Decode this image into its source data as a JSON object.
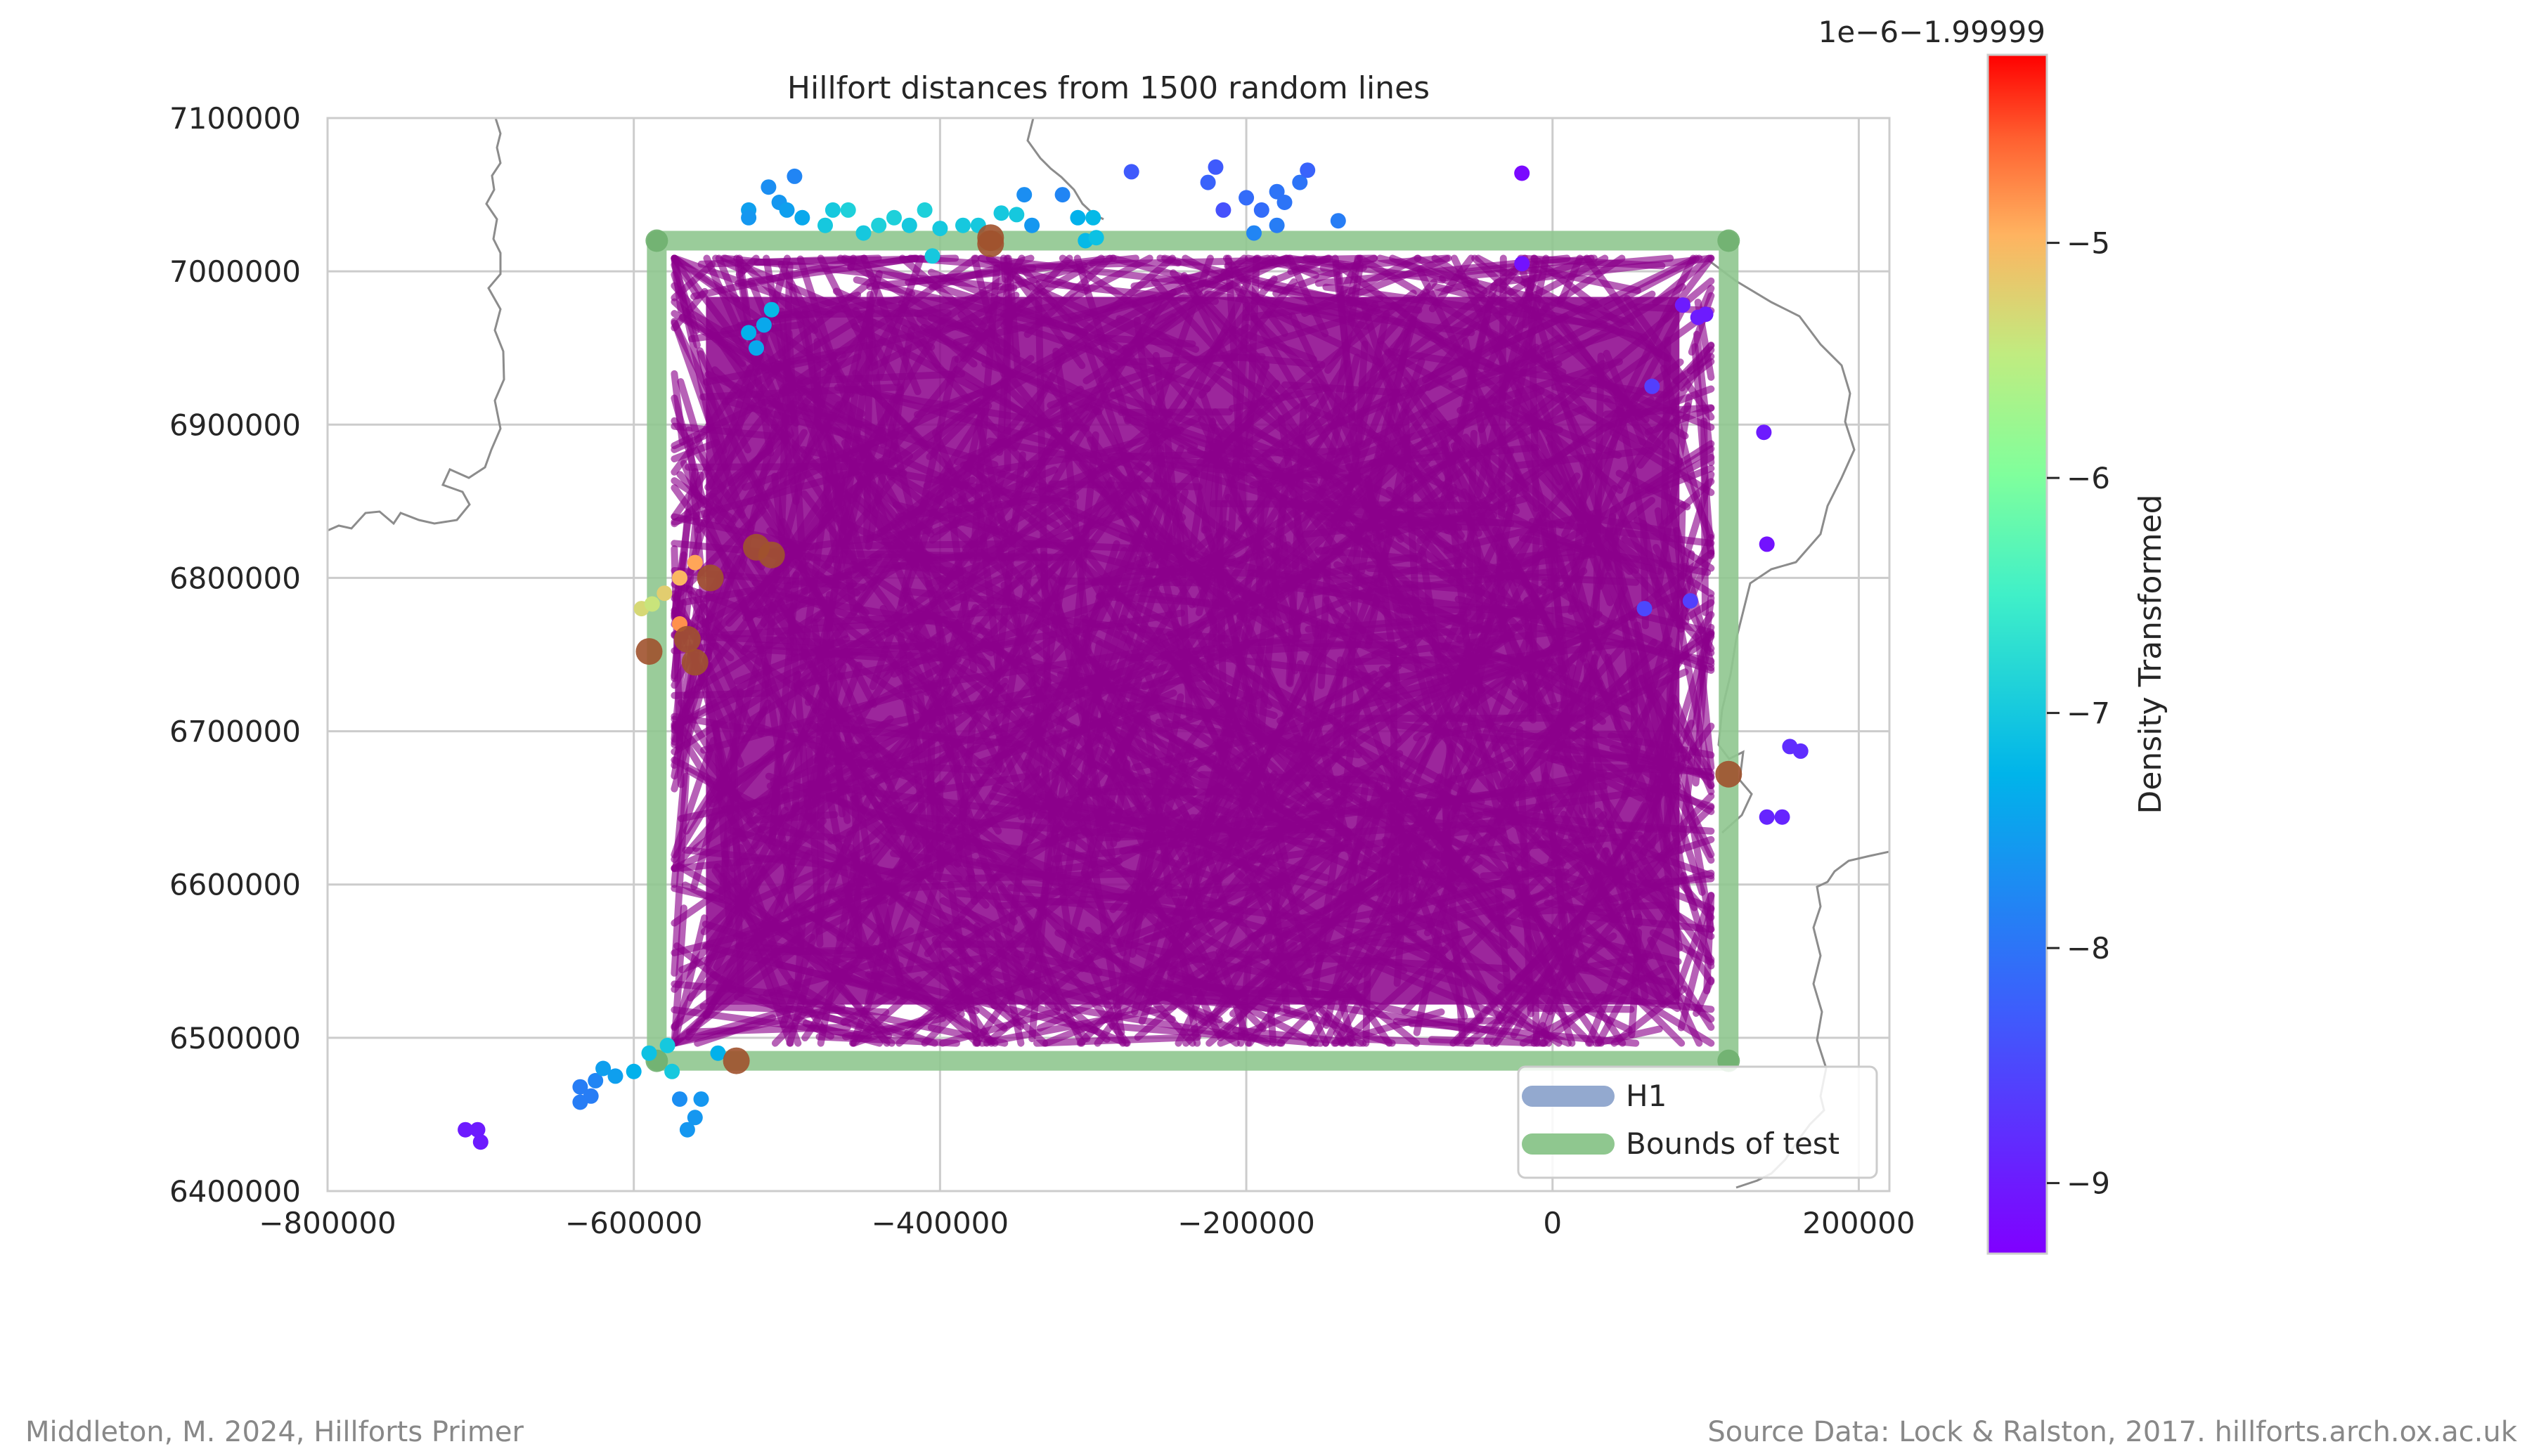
{
  "chart_data": {
    "type": "scatter",
    "title": "Hillfort distances from 1500 random lines",
    "xlabel": "",
    "ylabel": "",
    "xlim": [
      -800000,
      220000
    ],
    "ylim": [
      6400000,
      7100000
    ],
    "x_ticks": [
      -800000,
      -600000,
      -400000,
      -200000,
      0,
      200000
    ],
    "x_tick_labels": [
      "−800000",
      "−600000",
      "−400000",
      "−200000",
      "0",
      "200000"
    ],
    "y_ticks": [
      6400000,
      6500000,
      6600000,
      6700000,
      6800000,
      6900000,
      7000000,
      7100000
    ],
    "y_tick_labels": [
      "6400000",
      "6500000",
      "6600000",
      "6700000",
      "6800000",
      "6900000",
      "7000000",
      "7100000"
    ],
    "grid": true,
    "legend": {
      "placement": "lower-right",
      "entries": [
        {
          "label": "H1",
          "color": "#93a9cf"
        },
        {
          "label": "Bounds of test",
          "color": "#8fc78f"
        }
      ]
    },
    "bounds_of_test": {
      "x": [
        -585000,
        115000
      ],
      "y": [
        6485000,
        7020000
      ],
      "color": "#8fc78f"
    },
    "random_lines": {
      "count": 1500,
      "color": "#8b008b"
    },
    "colorbar": {
      "label": "Density Transformed",
      "offset_text": "1e−6−1.99999",
      "ticks": [
        -9,
        -8,
        -7,
        -6,
        -5
      ],
      "tick_labels": [
        "−9",
        "−8",
        "−7",
        "−6",
        "−5"
      ],
      "range": [
        -9.3,
        -4.2
      ],
      "colormap": "rainbow"
    },
    "points": [
      {
        "x": -710000,
        "y": 6440000,
        "d": -9.0
      },
      {
        "x": -702000,
        "y": 6440000,
        "d": -9.0
      },
      {
        "x": -700000,
        "y": 6432000,
        "d": -9.0
      },
      {
        "x": -635000,
        "y": 6468000,
        "d": -7.9
      },
      {
        "x": -635000,
        "y": 6458000,
        "d": -7.9
      },
      {
        "x": -628000,
        "y": 6462000,
        "d": -7.9
      },
      {
        "x": -625000,
        "y": 6472000,
        "d": -7.8
      },
      {
        "x": -620000,
        "y": 6480000,
        "d": -7.5
      },
      {
        "x": -612000,
        "y": 6475000,
        "d": -7.5
      },
      {
        "x": -600000,
        "y": 6478000,
        "d": -7.3
      },
      {
        "x": -590000,
        "y": 6490000,
        "d": -7.1
      },
      {
        "x": -578000,
        "y": 6495000,
        "d": -7.0
      },
      {
        "x": -575000,
        "y": 6478000,
        "d": -7.0
      },
      {
        "x": -570000,
        "y": 6460000,
        "d": -7.7
      },
      {
        "x": -560000,
        "y": 6448000,
        "d": -7.6
      },
      {
        "x": -556000,
        "y": 6460000,
        "d": -7.6
      },
      {
        "x": -565000,
        "y": 6440000,
        "d": -7.6
      },
      {
        "x": -545000,
        "y": 6490000,
        "d": -7.3
      },
      {
        "x": -533000,
        "y": 6485000,
        "d": -4.5
      },
      {
        "x": -590000,
        "y": 6752000,
        "d": -4.5
      },
      {
        "x": -595000,
        "y": 6780000,
        "d": -5.3
      },
      {
        "x": -588000,
        "y": 6783000,
        "d": -5.4
      },
      {
        "x": -580000,
        "y": 6790000,
        "d": -5.2
      },
      {
        "x": -570000,
        "y": 6770000,
        "d": -4.8
      },
      {
        "x": -565000,
        "y": 6760000,
        "d": -4.6
      },
      {
        "x": -560000,
        "y": 6745000,
        "d": -4.6
      },
      {
        "x": -570000,
        "y": 6800000,
        "d": -5.0
      },
      {
        "x": -560000,
        "y": 6810000,
        "d": -4.9
      },
      {
        "x": -550000,
        "y": 6800000,
        "d": -4.7
      },
      {
        "x": -520000,
        "y": 6820000,
        "d": -4.6
      },
      {
        "x": -510000,
        "y": 6815000,
        "d": -4.5
      },
      {
        "x": -515000,
        "y": 6965000,
        "d": -7.4
      },
      {
        "x": -520000,
        "y": 6950000,
        "d": -7.4
      },
      {
        "x": -525000,
        "y": 6960000,
        "d": -7.3
      },
      {
        "x": -510000,
        "y": 6975000,
        "d": -7.2
      },
      {
        "x": -525000,
        "y": 7040000,
        "d": -7.5
      },
      {
        "x": -525000,
        "y": 7035000,
        "d": -7.6
      },
      {
        "x": -512000,
        "y": 7055000,
        "d": -7.7
      },
      {
        "x": -505000,
        "y": 7045000,
        "d": -7.6
      },
      {
        "x": -495000,
        "y": 7062000,
        "d": -7.8
      },
      {
        "x": -490000,
        "y": 7035000,
        "d": -7.4
      },
      {
        "x": -500000,
        "y": 7040000,
        "d": -7.5
      },
      {
        "x": -475000,
        "y": 7030000,
        "d": -7.0
      },
      {
        "x": -470000,
        "y": 7040000,
        "d": -7.0
      },
      {
        "x": -460000,
        "y": 7040000,
        "d": -6.9
      },
      {
        "x": -450000,
        "y": 7025000,
        "d": -7.0
      },
      {
        "x": -440000,
        "y": 7030000,
        "d": -6.9
      },
      {
        "x": -430000,
        "y": 7035000,
        "d": -6.9
      },
      {
        "x": -420000,
        "y": 7030000,
        "d": -7.0
      },
      {
        "x": -410000,
        "y": 7040000,
        "d": -6.9
      },
      {
        "x": -400000,
        "y": 7028000,
        "d": -7.0
      },
      {
        "x": -405000,
        "y": 7010000,
        "d": -7.0
      },
      {
        "x": -385000,
        "y": 7030000,
        "d": -7.0
      },
      {
        "x": -375000,
        "y": 7030000,
        "d": -7.0
      },
      {
        "x": -360000,
        "y": 7038000,
        "d": -7.0
      },
      {
        "x": -350000,
        "y": 7037000,
        "d": -7.0
      },
      {
        "x": -340000,
        "y": 7030000,
        "d": -7.6
      },
      {
        "x": -345000,
        "y": 7050000,
        "d": -7.7
      },
      {
        "x": -320000,
        "y": 7050000,
        "d": -7.8
      },
      {
        "x": -310000,
        "y": 7035000,
        "d": -7.3
      },
      {
        "x": -300000,
        "y": 7035000,
        "d": -7.2
      },
      {
        "x": -305000,
        "y": 7020000,
        "d": -7.2
      },
      {
        "x": -298000,
        "y": 7022000,
        "d": -7.1
      },
      {
        "x": -367000,
        "y": 7022000,
        "d": -4.5
      },
      {
        "x": -367000,
        "y": 7018000,
        "d": -4.6
      },
      {
        "x": -275000,
        "y": 7065000,
        "d": -8.3
      },
      {
        "x": -220000,
        "y": 7068000,
        "d": -8.3
      },
      {
        "x": -225000,
        "y": 7058000,
        "d": -8.2
      },
      {
        "x": -215000,
        "y": 7040000,
        "d": -8.4
      },
      {
        "x": -200000,
        "y": 7048000,
        "d": -8.1
      },
      {
        "x": -190000,
        "y": 7040000,
        "d": -8.1
      },
      {
        "x": -180000,
        "y": 7052000,
        "d": -8.0
      },
      {
        "x": -175000,
        "y": 7045000,
        "d": -8.0
      },
      {
        "x": -165000,
        "y": 7058000,
        "d": -8.0
      },
      {
        "x": -160000,
        "y": 7066000,
        "d": -8.2
      },
      {
        "x": -180000,
        "y": 7030000,
        "d": -7.9
      },
      {
        "x": -195000,
        "y": 7025000,
        "d": -7.8
      },
      {
        "x": -140000,
        "y": 7033000,
        "d": -7.9
      },
      {
        "x": -20000,
        "y": 7064000,
        "d": -9.2
      },
      {
        "x": -20000,
        "y": 7005000,
        "d": -9.1
      },
      {
        "x": 85000,
        "y": 6978000,
        "d": -9.0
      },
      {
        "x": 95000,
        "y": 6970000,
        "d": -9.0
      },
      {
        "x": 100000,
        "y": 6972000,
        "d": -9.0
      },
      {
        "x": 138000,
        "y": 6895000,
        "d": -9.0
      },
      {
        "x": 140000,
        "y": 6822000,
        "d": -9.1
      },
      {
        "x": 155000,
        "y": 6690000,
        "d": -8.8
      },
      {
        "x": 162000,
        "y": 6687000,
        "d": -8.8
      },
      {
        "x": 140000,
        "y": 6644000,
        "d": -8.9
      },
      {
        "x": 150000,
        "y": 6644000,
        "d": -8.9
      },
      {
        "x": 115000,
        "y": 6672000,
        "d": -4.5
      },
      {
        "x": 60000,
        "y": 6780000,
        "d": -8.5
      },
      {
        "x": 90000,
        "y": 6785000,
        "d": -8.6
      },
      {
        "x": 65000,
        "y": 6925000,
        "d": -8.6
      }
    ]
  },
  "footer": {
    "left": "Middleton, M. 2024, Hillforts Primer",
    "right": "Source Data: Lock & Ralston, 2017. hillforts.arch.ox.ac.uk"
  }
}
